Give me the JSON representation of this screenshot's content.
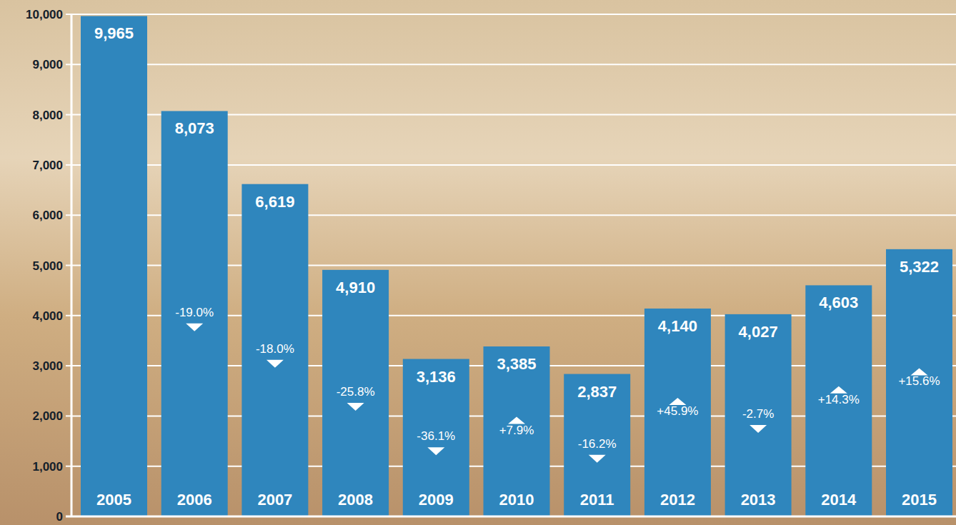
{
  "chart_data": {
    "type": "bar",
    "categories": [
      "2005",
      "2006",
      "2007",
      "2008",
      "2009",
      "2010",
      "2011",
      "2012",
      "2013",
      "2014",
      "2015"
    ],
    "values": [
      9965,
      8073,
      6619,
      4910,
      3136,
      3385,
      2837,
      4140,
      4027,
      4603,
      5322
    ],
    "value_labels": [
      "9,965",
      "8,073",
      "6,619",
      "4,910",
      "3,136",
      "3,385",
      "2,837",
      "4,140",
      "4,027",
      "4,603",
      "5,322"
    ],
    "annotations": [
      null,
      "-19.0%",
      "-18.0%",
      "-25.8%",
      "-36.1%",
      "+7.9%",
      "-16.2%",
      "+45.9%",
      "-2.7%",
      "+14.3%",
      "+15.6%"
    ],
    "color": "#2f86bd",
    "ylim": [
      0,
      10000
    ],
    "yticks": [
      0,
      {
        "value": 1000,
        "label": "1,000"
      },
      {
        "value": 2000,
        "label": "2,000"
      },
      {
        "value": 3000,
        "label": "3,000"
      },
      {
        "value": 4000,
        "label": "4,000"
      },
      {
        "value": 5000,
        "label": "5,000"
      },
      {
        "value": 6000,
        "label": "6,000"
      },
      {
        "value": 7000,
        "label": "7,000"
      },
      {
        "value": 8000,
        "label": "8,000"
      },
      {
        "value": 9000,
        "label": "9,000"
      },
      {
        "value": 10000,
        "label": "10,000"
      }
    ],
    "grid": true,
    "data_labels": true
  }
}
